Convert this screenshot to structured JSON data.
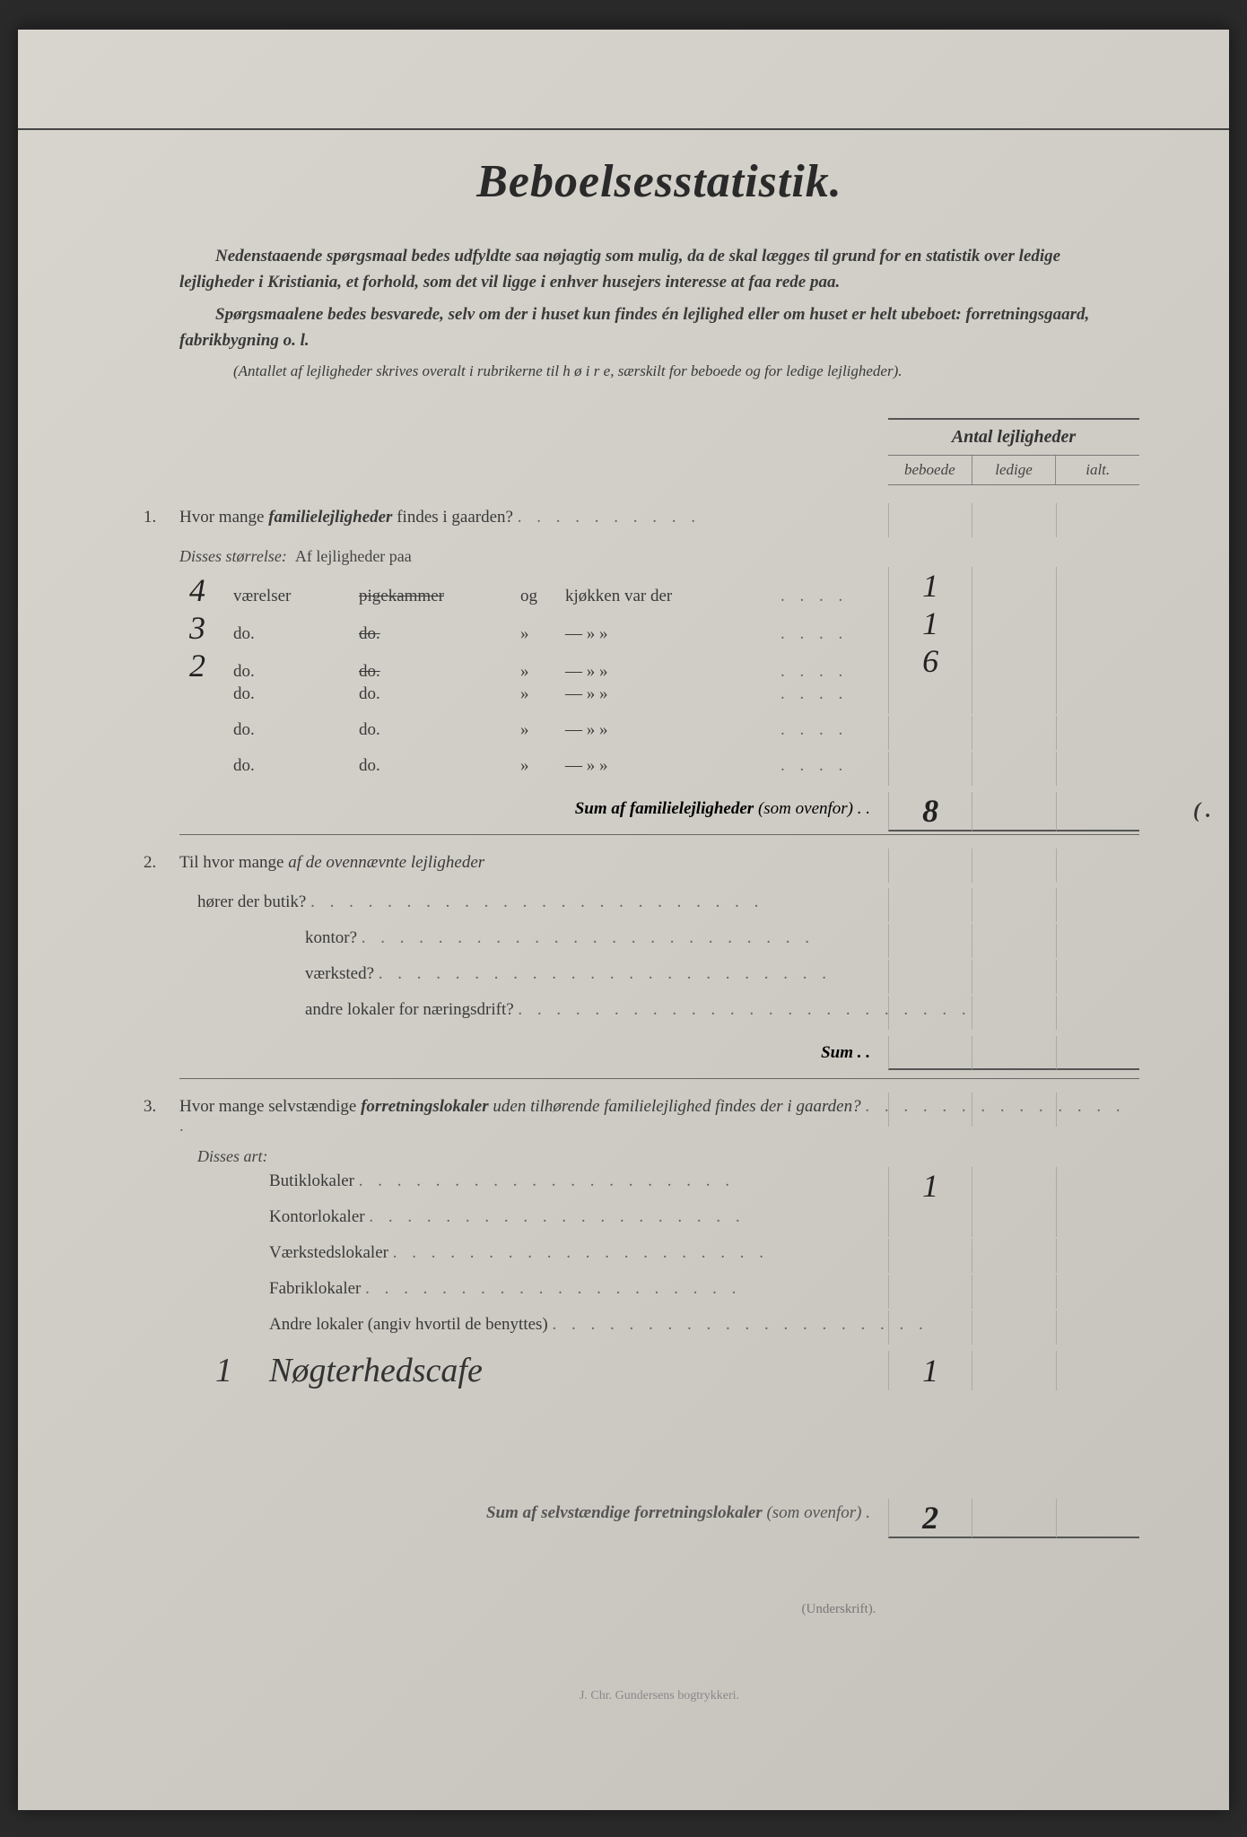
{
  "title": "Beboelsesstatistik.",
  "intro": {
    "p1": "Nedenstaaende spørgsmaal bedes udfyldte saa nøjagtig som mulig, da de skal lægges til grund for en statistik over ledige lejligheder i Kristiania, et forhold, som det vil ligge i enhver husejers interesse at faa rede paa.",
    "p2": "Spørgsmaalene bedes besvarede, selv om der i huset kun findes én lejlighed eller om huset er helt ubeboet: forretningsgaard, fabrikbygning o. l.",
    "note": "(Antallet af lejligheder skrives overalt i rubrikerne til h ø i r e, særskilt for beboede og for ledige lejligheder)."
  },
  "cols": {
    "title": "Antal lejligheder",
    "c1": "beboede",
    "c2": "ledige",
    "c3": "ialt."
  },
  "q1": {
    "num": "1.",
    "text_a": "Hvor mange ",
    "text_em": "familielejligheder",
    "text_b": " findes i gaarden?",
    "sub": "Disses størrelse:",
    "sub2": "Af lejligheder paa",
    "rows": [
      {
        "hw": "4",
        "c1": "værelser",
        "c2": "pigekammer",
        "c2_strike": true,
        "c3": "og",
        "c4": "kjøkken var der",
        "v1": "1",
        "v2": "",
        "v3": ""
      },
      {
        "hw": "3",
        "c1": "do.",
        "c2": "do.",
        "c2_strike": true,
        "c3": "»",
        "c4": "—        »        »",
        "v1": "1",
        "v2": "",
        "v3": ""
      },
      {
        "hw": "2",
        "c1": "do.",
        "c2": "do.",
        "c2_strike": true,
        "c3": "»",
        "c4": "—        »        »",
        "v1": "6",
        "v2": "",
        "v3": ""
      },
      {
        "hw": "",
        "c1": "do.",
        "c2": "do.",
        "c3": "»",
        "c4": "—        »        »",
        "v1": "",
        "v2": "",
        "v3": ""
      },
      {
        "hw": "",
        "c1": "do.",
        "c2": "do.",
        "c3": "»",
        "c4": "—        »        »",
        "v1": "",
        "v2": "",
        "v3": ""
      },
      {
        "hw": "",
        "c1": "do.",
        "c2": "do.",
        "c3": "»",
        "c4": "—        »        »",
        "v1": "",
        "v2": "",
        "v3": ""
      }
    ],
    "sum_label": "Sum af familielejligheder",
    "sum_note": "(som ovenfor) . .",
    "sum_v1": "8",
    "margin": "( ."
  },
  "q2": {
    "num": "2.",
    "text_a": "Til hvor mange ",
    "text_em": "af de ovennævnte lejligheder",
    "rows": [
      {
        "label": "hører der butik?"
      },
      {
        "label": "kontor?"
      },
      {
        "label": "værksted?"
      },
      {
        "label": "andre lokaler for næringsdrift?"
      }
    ],
    "sum": "Sum . ."
  },
  "q3": {
    "num": "3.",
    "text_a": "Hvor mange selvstændige ",
    "text_em": "forretningslokaler",
    "text_b": " uden tilhørende familielejlighed findes der i gaarden?",
    "sub": "Disses art:",
    "rows": [
      {
        "label": "Butiklokaler",
        "v1": "1"
      },
      {
        "label": "Kontorlokaler",
        "v1": ""
      },
      {
        "label": "Værkstedslokaler",
        "v1": ""
      },
      {
        "label": "Fabriklokaler",
        "v1": ""
      },
      {
        "label": "Andre lokaler (angiv hvortil de benyttes)",
        "v1": ""
      }
    ],
    "handwritten_num": "1",
    "handwritten_text": "Nøgterhedscafe",
    "handwritten_v1": "1"
  },
  "final_sum": {
    "label": "Sum af selvstændige forretningslokaler",
    "note": "(som ovenfor) .",
    "v1": "2"
  },
  "underskrift": "(Underskrift).",
  "printer": "J. Chr. Gundersens bogtrykkeri.",
  "colors": {
    "paper_bg": "#cfccc5",
    "text_print": "#3a3a3a",
    "text_handwritten": "#222222",
    "rule_line": "#555555"
  }
}
